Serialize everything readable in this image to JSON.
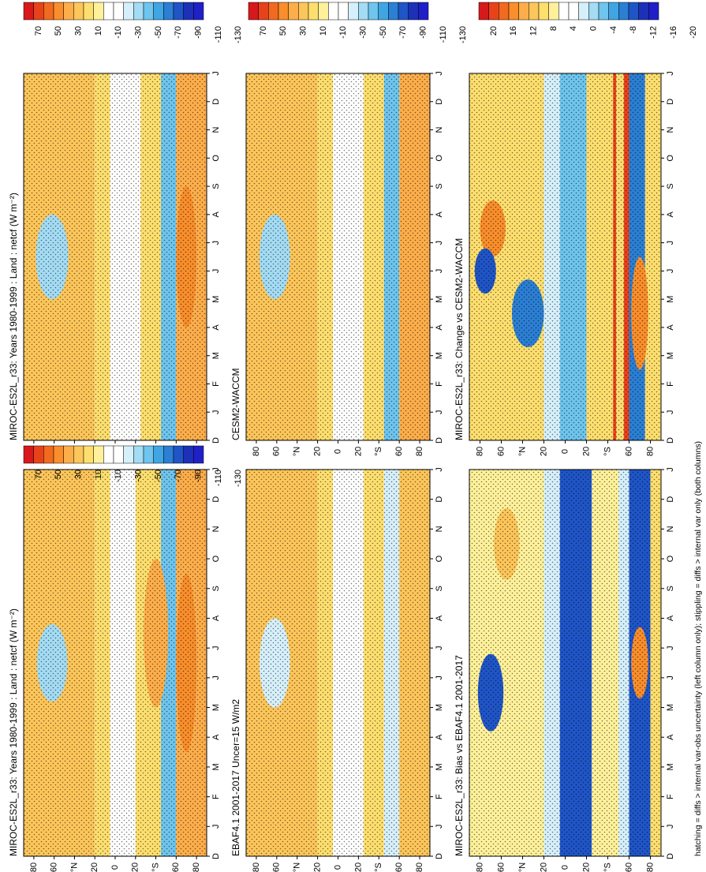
{
  "figure_note": "hatching = diffs > internal var-obs uncertainty (left column only); stippling = diffs > internal var only (both columns)",
  "chart_data": [
    {
      "type": "heatmap",
      "title": "MIROC-ES2L_r33: Years 1980-1999 : Land : netcf (W m⁻²)",
      "x_ticks": [
        "D",
        "J",
        "F",
        "M",
        "A",
        "M",
        "J",
        "J",
        "A",
        "S",
        "O",
        "N",
        "D",
        "J"
      ],
      "y_ticks": [
        "80",
        "60",
        "°N",
        "20",
        "0",
        "20",
        "°S",
        "60",
        "80"
      ],
      "colorbar": {
        "labels": [
          "70",
          "50",
          "30",
          "10",
          "-10",
          "-30",
          "-50",
          "-70",
          "-90",
          "-110",
          "-130"
        ],
        "colors": [
          "#d7191c",
          "#e8421b",
          "#f26a1f",
          "#f98e2b",
          "#fdae4a",
          "#fdc65a",
          "#fedf6e",
          "#fff19a",
          "#ffffff",
          "#ffffff",
          "#d6f0fb",
          "#a3dcf4",
          "#6ec5ee",
          "#3fa6e3",
          "#2b7fd4",
          "#1f55c7",
          "#1c30b8",
          "#2020c8"
        ]
      },
      "zones": [
        {
          "lat": [
            90,
            20
          ],
          "value": 20
        },
        {
          "lat": [
            20,
            5
          ],
          "value": 5
        },
        {
          "lat": [
            5,
            -20
          ],
          "value": -40
        },
        {
          "lat": [
            -20,
            -45
          ],
          "value": 10
        },
        {
          "lat": [
            -45,
            -60
          ],
          "value": -70
        },
        {
          "lat": [
            -60,
            -90
          ],
          "value": 30
        }
      ],
      "blobs": [
        {
          "month": 6.5,
          "lat": 62,
          "dm": 1.3,
          "dl": 15,
          "value": -60
        },
        {
          "month": 7.5,
          "lat": -40,
          "dm": 2.5,
          "dl": 12,
          "value": 25
        },
        {
          "month": 6.5,
          "lat": -70,
          "dm": 3.0,
          "dl": 10,
          "value": 40
        }
      ]
    },
    {
      "type": "heatmap",
      "title": "MIROC-ES2L_r33: Years 1980-1999 : Land : netcf (W m⁻²)",
      "x_ticks": [
        "D",
        "J",
        "F",
        "M",
        "A",
        "M",
        "J",
        "J",
        "A",
        "S",
        "O",
        "N",
        "D",
        "J"
      ],
      "y_ticks": [
        "80",
        "60",
        "°N",
        "20",
        "0",
        "20",
        "°S",
        "60",
        "80"
      ],
      "colorbar": {
        "labels": [
          "70",
          "50",
          "30",
          "10",
          "-10",
          "-30",
          "-50",
          "-70",
          "-90",
          "-110",
          "-130"
        ],
        "colors": [
          "#d7191c",
          "#e8421b",
          "#f26a1f",
          "#f98e2b",
          "#fdae4a",
          "#fdc65a",
          "#fedf6e",
          "#fff19a",
          "#ffffff",
          "#ffffff",
          "#d6f0fb",
          "#a3dcf4",
          "#6ec5ee",
          "#3fa6e3",
          "#2b7fd4",
          "#1f55c7",
          "#1c30b8",
          "#2020c8"
        ]
      },
      "zones": [
        {
          "lat": [
            90,
            20
          ],
          "value": 20
        },
        {
          "lat": [
            20,
            5
          ],
          "value": 5
        },
        {
          "lat": [
            5,
            -25
          ],
          "value": -20
        },
        {
          "lat": [
            -25,
            -45
          ],
          "value": 10
        },
        {
          "lat": [
            -45,
            -60
          ],
          "value": -70
        },
        {
          "lat": [
            -60,
            -90
          ],
          "value": 35
        }
      ],
      "blobs": [
        {
          "month": 6.5,
          "lat": 62,
          "dm": 1.5,
          "dl": 16,
          "value": -60
        },
        {
          "month": 6.5,
          "lat": -70,
          "dm": 2.5,
          "dl": 10,
          "value": 45
        }
      ]
    },
    {
      "type": "heatmap",
      "title": "EBAF4.1 2001-2017 Uncer=15 W/m2",
      "x_ticks": [
        "D",
        "J",
        "F",
        "M",
        "A",
        "M",
        "J",
        "J",
        "A",
        "S",
        "O",
        "N",
        "D",
        "J"
      ],
      "y_ticks": [
        "80",
        "60",
        "°N",
        "20",
        "0",
        "20",
        "°S",
        "60",
        "80"
      ],
      "colorbar": {
        "labels": [
          "70",
          "50",
          "30",
          "10",
          "-10",
          "-30",
          "-50",
          "-70",
          "-90",
          "-110",
          "-130"
        ],
        "colors": [
          "#d7191c",
          "#e8421b",
          "#f26a1f",
          "#f98e2b",
          "#fdae4a",
          "#fdc65a",
          "#fedf6e",
          "#fff19a",
          "#ffffff",
          "#ffffff",
          "#d6f0fb",
          "#a3dcf4",
          "#6ec5ee",
          "#3fa6e3",
          "#2b7fd4",
          "#1f55c7",
          "#1c30b8",
          "#2020c8"
        ]
      },
      "zones": [
        {
          "lat": [
            90,
            20
          ],
          "value": 15
        },
        {
          "lat": [
            20,
            5
          ],
          "value": 5
        },
        {
          "lat": [
            5,
            -25
          ],
          "value": -20
        },
        {
          "lat": [
            -25,
            -45
          ],
          "value": 5
        },
        {
          "lat": [
            -45,
            -60
          ],
          "value": -50
        },
        {
          "lat": [
            -60,
            -90
          ],
          "value": 20
        }
      ],
      "blobs": [
        {
          "month": 6.5,
          "lat": 62,
          "dm": 1.5,
          "dl": 15,
          "value": -50
        }
      ]
    },
    {
      "type": "heatmap",
      "title": "CESM2-WACCM",
      "x_ticks": [
        "D",
        "J",
        "F",
        "M",
        "A",
        "M",
        "J",
        "J",
        "A",
        "S",
        "O",
        "N",
        "D",
        "J"
      ],
      "y_ticks": [
        "80",
        "60",
        "°N",
        "20",
        "0",
        "20",
        "°S",
        "60",
        "80"
      ],
      "colorbar": {
        "labels": [
          "70",
          "50",
          "30",
          "10",
          "-10",
          "-30",
          "-50",
          "-70",
          "-90",
          "-110",
          "-130"
        ],
        "colors": [
          "#d7191c",
          "#e8421b",
          "#f26a1f",
          "#f98e2b",
          "#fdae4a",
          "#fdc65a",
          "#fedf6e",
          "#fff19a",
          "#ffffff",
          "#ffffff",
          "#d6f0fb",
          "#a3dcf4",
          "#6ec5ee",
          "#3fa6e3",
          "#2b7fd4",
          "#1f55c7",
          "#1c30b8",
          "#2020c8"
        ]
      },
      "zones": [
        {
          "lat": [
            90,
            20
          ],
          "value": 15
        },
        {
          "lat": [
            20,
            5
          ],
          "value": 5
        },
        {
          "lat": [
            5,
            -25
          ],
          "value": -20
        },
        {
          "lat": [
            -25,
            -45
          ],
          "value": 5
        },
        {
          "lat": [
            -45,
            -60
          ],
          "value": -70
        },
        {
          "lat": [
            -60,
            -90
          ],
          "value": 25
        }
      ],
      "blobs": [
        {
          "month": 6.5,
          "lat": 62,
          "dm": 1.5,
          "dl": 15,
          "value": -60
        }
      ]
    },
    {
      "type": "heatmap",
      "title": "MIROC-ES2L_r33: Bias vs EBAF4.1 2001-2017",
      "x_ticks": [
        "D",
        "J",
        "F",
        "M",
        "A",
        "M",
        "J",
        "J",
        "A",
        "S",
        "O",
        "N",
        "D",
        "J"
      ],
      "y_ticks": [
        "80",
        "60",
        "°N",
        "20",
        "0",
        "20",
        "°S",
        "60",
        "80"
      ],
      "colorbar": {
        "labels": [
          "20",
          "16",
          "12",
          "8",
          "4",
          "0",
          "-4",
          "-8",
          "-12",
          "-16",
          "-20"
        ],
        "colors": [
          "#d7191c",
          "#e8421b",
          "#f26a1f",
          "#f98e2b",
          "#fdae4a",
          "#fdc65a",
          "#fedf6e",
          "#fff19a",
          "#ffffff",
          "#ffffff",
          "#d6f0fb",
          "#a3dcf4",
          "#6ec5ee",
          "#3fa6e3",
          "#2b7fd4",
          "#1f55c7",
          "#1c30b8",
          "#2020c8"
        ]
      },
      "zones": [
        {
          "lat": [
            90,
            20
          ],
          "value": 5
        },
        {
          "lat": [
            20,
            5
          ],
          "value": -4
        },
        {
          "lat": [
            5,
            -25
          ],
          "value": -18
        },
        {
          "lat": [
            -25,
            -50
          ],
          "value": 5
        },
        {
          "lat": [
            -50,
            -60
          ],
          "value": -4
        },
        {
          "lat": [
            -60,
            -80
          ],
          "value": -17
        },
        {
          "lat": [
            -80,
            -90
          ],
          "value": 6
        }
      ],
      "blobs": [
        {
          "month": 5.5,
          "lat": 70,
          "dm": 1.3,
          "dl": 12,
          "value": -18
        },
        {
          "month": 10.5,
          "lat": 55,
          "dm": 1.2,
          "dl": 12,
          "value": 10
        },
        {
          "month": 6.5,
          "lat": -70,
          "dm": 1.2,
          "dl": 8,
          "value": 16
        }
      ]
    },
    {
      "type": "heatmap",
      "title": "MIROC-ES2L_r33: Change vs CESM2-WACCM",
      "x_ticks": [
        "D",
        "J",
        "F",
        "M",
        "A",
        "M",
        "J",
        "J",
        "A",
        "S",
        "O",
        "N",
        "D",
        "J"
      ],
      "y_ticks": [
        "80",
        "60",
        "°N",
        "20",
        "0",
        "20",
        "°S",
        "60",
        "80"
      ],
      "colorbar": {
        "labels": [
          "20",
          "16",
          "12",
          "8",
          "4",
          "0",
          "-4",
          "-8",
          "-12",
          "-16",
          "-20"
        ],
        "colors": [
          "#d7191c",
          "#e8421b",
          "#f26a1f",
          "#f98e2b",
          "#fdae4a",
          "#fdc65a",
          "#fedf6e",
          "#fff19a",
          "#ffffff",
          "#ffffff",
          "#d6f0fb",
          "#a3dcf4",
          "#6ec5ee",
          "#3fa6e3",
          "#2b7fd4",
          "#1f55c7",
          "#1c30b8",
          "#2020c8"
        ]
      },
      "zones": [
        {
          "lat": [
            90,
            20
          ],
          "value": 6
        },
        {
          "lat": [
            20,
            5
          ],
          "value": -4
        },
        {
          "lat": [
            5,
            -20
          ],
          "value": -8
        },
        {
          "lat": [
            -20,
            -45
          ],
          "value": 6
        },
        {
          "lat": [
            -45,
            -48
          ],
          "value": 20
        },
        {
          "lat": [
            -48,
            -55
          ],
          "value": 6
        },
        {
          "lat": [
            -55,
            -60
          ],
          "value": 20
        },
        {
          "lat": [
            -60,
            -75
          ],
          "value": -14
        },
        {
          "lat": [
            -75,
            -90
          ],
          "value": 6
        }
      ],
      "blobs": [
        {
          "month": 7.5,
          "lat": 68,
          "dm": 1.0,
          "dl": 12,
          "value": 16
        },
        {
          "month": 6.0,
          "lat": 75,
          "dm": 0.8,
          "dl": 10,
          "value": -16
        },
        {
          "month": 4.5,
          "lat": 35,
          "dm": 1.2,
          "dl": 15,
          "value": -14
        },
        {
          "month": 4.5,
          "lat": -70,
          "dm": 2.0,
          "dl": 8,
          "value": 16
        }
      ]
    }
  ]
}
